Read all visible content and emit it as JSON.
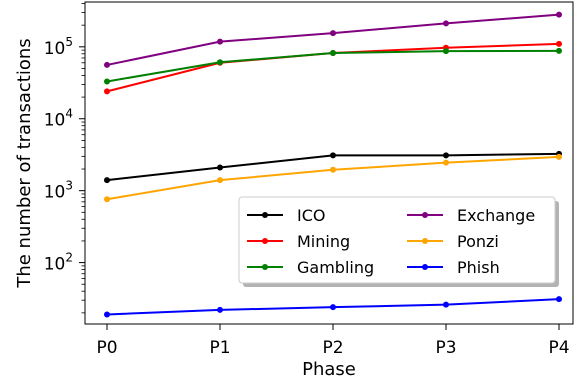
{
  "chart_data": {
    "type": "line",
    "title": "",
    "xlabel": "Phase",
    "ylabel": "The number of transactions",
    "yscale": "log",
    "ylim": [
      14,
      420000
    ],
    "grid": false,
    "legend_placement": "lower-right",
    "legend_columns": 2,
    "categories": [
      "P0",
      "P1",
      "P2",
      "P3",
      "P4"
    ],
    "yticks": [
      {
        "value": 100,
        "base": "10",
        "exp": "2"
      },
      {
        "value": 1000,
        "base": "10",
        "exp": "3"
      },
      {
        "value": 10000,
        "base": "10",
        "exp": "4"
      },
      {
        "value": 100000,
        "base": "10",
        "exp": "5"
      }
    ],
    "series": [
      {
        "name": "ICO",
        "color": "#000000",
        "values": [
          1400,
          2100,
          3100,
          3100,
          3250
        ]
      },
      {
        "name": "Mining",
        "color": "#ff0000",
        "values": [
          24000,
          60000,
          82000,
          97000,
          110000
        ]
      },
      {
        "name": "Gambling",
        "color": "#008000",
        "values": [
          33000,
          61000,
          82000,
          87000,
          88000
        ]
      },
      {
        "name": "Exchange",
        "color": "#800080",
        "values": [
          56000,
          118000,
          155000,
          212000,
          280000
        ]
      },
      {
        "name": "Ponzi",
        "color": "#ffa500",
        "values": [
          760,
          1400,
          1950,
          2450,
          2950
        ]
      },
      {
        "name": "Phish",
        "color": "#0000ff",
        "values": [
          19,
          22,
          24,
          26,
          31
        ]
      }
    ]
  }
}
